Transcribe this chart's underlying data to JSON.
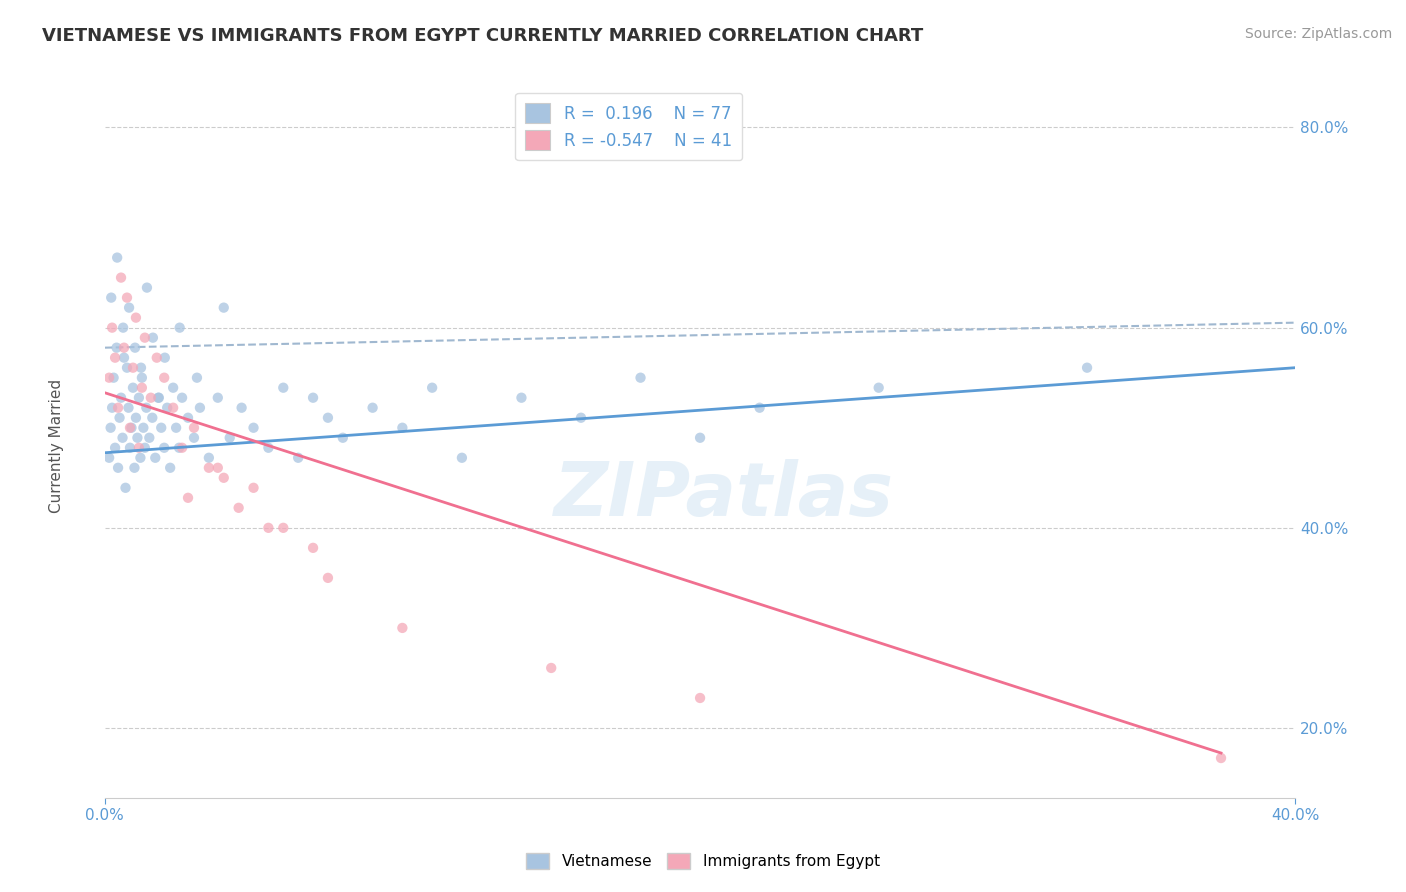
{
  "title": "VIETNAMESE VS IMMIGRANTS FROM EGYPT CURRENTLY MARRIED CORRELATION CHART",
  "source": "Source: ZipAtlas.com",
  "ylabel": "Currently Married",
  "xlim": [
    0.0,
    40.0
  ],
  "ylim": [
    13.0,
    85.0
  ],
  "y_ticks": [
    20.0,
    40.0,
    60.0,
    80.0
  ],
  "color_blue": "#a8c4e0",
  "color_pink": "#f4a8b8",
  "line_color_blue": "#5b9bd5",
  "line_color_pink": "#f07090",
  "dashed_color": "#a0b8d0",
  "blue_scatter_x": [
    0.15,
    0.2,
    0.25,
    0.3,
    0.35,
    0.4,
    0.45,
    0.5,
    0.55,
    0.6,
    0.65,
    0.7,
    0.75,
    0.8,
    0.85,
    0.9,
    0.95,
    1.0,
    1.05,
    1.1,
    1.15,
    1.2,
    1.25,
    1.3,
    1.35,
    1.4,
    1.5,
    1.6,
    1.7,
    1.8,
    1.9,
    2.0,
    2.1,
    2.2,
    2.3,
    2.4,
    2.5,
    2.6,
    2.8,
    3.0,
    3.2,
    3.5,
    3.8,
    4.2,
    4.6,
    5.0,
    5.5,
    6.0,
    6.5,
    7.0,
    7.5,
    8.0,
    9.0,
    10.0,
    11.0,
    12.0,
    14.0,
    16.0,
    18.0,
    20.0,
    22.0,
    26.0,
    33.0,
    0.22,
    0.42,
    0.62,
    0.82,
    1.02,
    1.22,
    1.42,
    1.62,
    1.82,
    2.02,
    2.52,
    3.1,
    4.0
  ],
  "blue_scatter_y": [
    47,
    50,
    52,
    55,
    48,
    58,
    46,
    51,
    53,
    49,
    57,
    44,
    56,
    52,
    48,
    50,
    54,
    46,
    51,
    49,
    53,
    47,
    55,
    50,
    48,
    52,
    49,
    51,
    47,
    53,
    50,
    48,
    52,
    46,
    54,
    50,
    48,
    53,
    51,
    49,
    52,
    47,
    53,
    49,
    52,
    50,
    48,
    54,
    47,
    53,
    51,
    49,
    52,
    50,
    54,
    47,
    53,
    51,
    55,
    49,
    52,
    54,
    56,
    63,
    67,
    60,
    62,
    58,
    56,
    64,
    59,
    53,
    57,
    60,
    55,
    62
  ],
  "pink_scatter_x": [
    0.15,
    0.25,
    0.35,
    0.45,
    0.55,
    0.65,
    0.75,
    0.85,
    0.95,
    1.05,
    1.15,
    1.25,
    1.35,
    1.55,
    1.75,
    2.0,
    2.3,
    2.6,
    3.0,
    3.5,
    4.0,
    4.5,
    5.0,
    6.0,
    7.0,
    2.8,
    3.8,
    5.5,
    7.5,
    10.0,
    15.0,
    20.0,
    37.5
  ],
  "pink_scatter_y": [
    55,
    60,
    57,
    52,
    65,
    58,
    63,
    50,
    56,
    61,
    48,
    54,
    59,
    53,
    57,
    55,
    52,
    48,
    50,
    46,
    45,
    42,
    44,
    40,
    38,
    43,
    46,
    40,
    35,
    30,
    26,
    23,
    17
  ],
  "blue_trend_x": [
    0.0,
    40.0
  ],
  "blue_trend_y": [
    47.5,
    56.0
  ],
  "pink_trend_x": [
    0.0,
    37.5
  ],
  "pink_trend_y": [
    53.5,
    17.5
  ],
  "dashed_line_x": [
    0.0,
    40.0
  ],
  "dashed_line_y": [
    58.0,
    60.5
  ]
}
